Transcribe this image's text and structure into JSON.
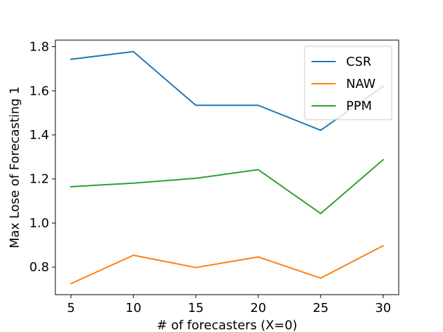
{
  "chart_data": {
    "type": "line",
    "xlabel": "# of forecasters (X=0)",
    "ylabel": "Max Lose of Forecasting 1",
    "x": [
      5,
      10,
      15,
      20,
      25,
      30
    ],
    "xlim": [
      3.75,
      31.25
    ],
    "ylim": [
      0.675,
      1.83
    ],
    "xticks": [
      5,
      10,
      15,
      20,
      25,
      30
    ],
    "yticks": [
      0.8,
      1.0,
      1.2,
      1.4,
      1.6,
      1.8
    ],
    "ytick_labels": [
      "0.8",
      "1.0",
      "1.2",
      "1.4",
      "1.6",
      "1.8"
    ],
    "grid": false,
    "legend_position": "top-right",
    "series": [
      {
        "name": "CSR",
        "color": "#1f77b4",
        "values": [
          1.743,
          1.778,
          1.534,
          1.534,
          1.421,
          1.62
        ]
      },
      {
        "name": "NAW",
        "color": "#ff7f0e",
        "values": [
          0.725,
          0.854,
          0.798,
          0.846,
          0.75,
          0.897
        ]
      },
      {
        "name": "PPM",
        "color": "#2ca02c",
        "values": [
          1.165,
          1.181,
          1.203,
          1.242,
          1.043,
          1.287
        ]
      }
    ]
  }
}
